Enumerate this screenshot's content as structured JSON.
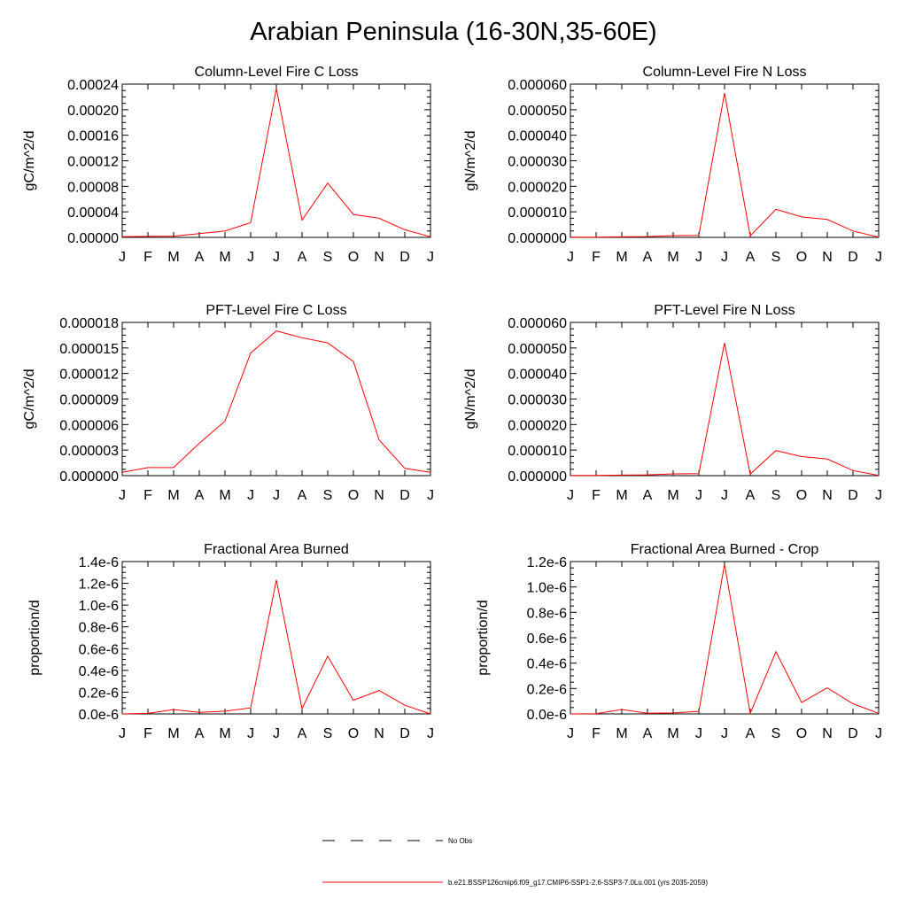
{
  "page": {
    "title": "Arabian Peninsula (16-30N,35-60E)"
  },
  "chart_data": [
    {
      "type": "line",
      "title": "Column-Level Fire C Loss",
      "ylabel": "gC/m^2/d",
      "xlabel": "",
      "categories": [
        "J",
        "F",
        "M",
        "A",
        "M",
        "J",
        "J",
        "A",
        "S",
        "O",
        "N",
        "D",
        "J"
      ],
      "ylim": [
        0,
        0.00024
      ],
      "yticks": [
        "0.00000",
        "0.00004",
        "0.00008",
        "0.00012",
        "0.00016",
        "0.00020",
        "0.00024"
      ],
      "series": [
        {
          "color": "#ff0000",
          "values": [
            1e-06,
            1.5e-06,
            2e-06,
            6e-06,
            1e-05,
            2.3e-05,
            0.000233,
            2.7e-05,
            8.5e-05,
            3.6e-05,
            3e-05,
            1.2e-05,
            1e-06
          ]
        }
      ]
    },
    {
      "type": "line",
      "title": "Column-Level Fire N Loss",
      "ylabel": "gN/m^2/d",
      "xlabel": "",
      "categories": [
        "J",
        "F",
        "M",
        "A",
        "M",
        "J",
        "J",
        "A",
        "S",
        "O",
        "N",
        "D",
        "J"
      ],
      "ylim": [
        0,
        6e-05
      ],
      "yticks": [
        "0.000000",
        "0.000010",
        "0.000020",
        "0.000030",
        "0.000040",
        "0.000050",
        "0.000060"
      ],
      "series": [
        {
          "color": "#ff0000",
          "values": [
            1e-07,
            1e-07,
            2e-07,
            3e-07,
            7e-07,
            8e-07,
            5.65e-05,
            6e-07,
            1.1e-05,
            8e-06,
            7e-06,
            2.5e-06,
            1e-07
          ]
        }
      ]
    },
    {
      "type": "line",
      "title": "PFT-Level Fire C Loss",
      "ylabel": "gC/m^2/d",
      "xlabel": "",
      "categories": [
        "J",
        "F",
        "M",
        "A",
        "M",
        "J",
        "J",
        "A",
        "S",
        "O",
        "N",
        "D",
        "J"
      ],
      "ylim": [
        0,
        1.8e-05
      ],
      "yticks": [
        "0.000000",
        "0.000003",
        "0.000006",
        "0.000009",
        "0.000012",
        "0.000015",
        "0.000018"
      ],
      "series": [
        {
          "color": "#ff0000",
          "values": [
            4e-07,
            9.5e-07,
            9.5e-07,
            3.8e-06,
            6.4e-06,
            1.44e-05,
            1.7e-05,
            1.62e-05,
            1.56e-05,
            1.34e-05,
            4.2e-06,
            8.5e-07,
            4e-07
          ]
        }
      ]
    },
    {
      "type": "line",
      "title": "PFT-Level Fire N Loss",
      "ylabel": "gN/m^2/d",
      "xlabel": "",
      "categories": [
        "J",
        "F",
        "M",
        "A",
        "M",
        "J",
        "J",
        "A",
        "S",
        "O",
        "N",
        "D",
        "J"
      ],
      "ylim": [
        0,
        6e-05
      ],
      "yticks": [
        "0.000000",
        "0.000010",
        "0.000020",
        "0.000030",
        "0.000040",
        "0.000050",
        "0.000060"
      ],
      "series": [
        {
          "color": "#ff0000",
          "values": [
            1e-07,
            1e-07,
            2e-07,
            3e-07,
            7e-07,
            8e-07,
            5.2e-05,
            6e-07,
            9.8e-06,
            7.5e-06,
            6.5e-06,
            2e-06,
            1e-07
          ]
        }
      ]
    },
    {
      "type": "line",
      "title": "Fractional Area Burned",
      "ylabel": "proportion/d",
      "xlabel": "",
      "categories": [
        "J",
        "F",
        "M",
        "A",
        "M",
        "J",
        "J",
        "A",
        "S",
        "O",
        "N",
        "D",
        "J"
      ],
      "ylim": [
        0,
        1.4e-06
      ],
      "yticks": [
        "0.0e-6",
        "0.2e-6",
        "0.4e-6",
        "0.6e-6",
        "0.8e-6",
        "1.0e-6",
        "1.2e-6",
        "1.4e-6"
      ],
      "series": [
        {
          "color": "#ff0000",
          "values": [
            0.0,
            5e-09,
            4e-08,
            1.5e-08,
            2.5e-08,
            5.5e-08,
            1.23e-06,
            5e-08,
            5.3e-07,
            1.25e-07,
            2.15e-07,
            8e-08,
            0.0
          ]
        }
      ]
    },
    {
      "type": "line",
      "title": "Fractional Area Burned - Crop",
      "ylabel": "proportion/d",
      "xlabel": "",
      "categories": [
        "J",
        "F",
        "M",
        "A",
        "M",
        "J",
        "J",
        "A",
        "S",
        "O",
        "N",
        "D",
        "J"
      ],
      "ylim": [
        0,
        1.2e-06
      ],
      "yticks": [
        "0.0e-6",
        "0.2e-6",
        "0.4e-6",
        "0.6e-6",
        "0.8e-6",
        "1.0e-6",
        "1.2e-6"
      ],
      "series": [
        {
          "color": "#ff0000",
          "values": [
            0.0,
            2e-09,
            3.5e-08,
            5e-09,
            8e-09,
            2e-08,
            1.18e-06,
            5e-09,
            4.9e-07,
            9e-08,
            2.05e-07,
            8e-08,
            5e-09
          ]
        }
      ]
    }
  ],
  "legend": [
    {
      "label": "No Obs",
      "color": "#000000",
      "style": "dashed"
    },
    {
      "label": "b.e21.BSSP126cmip6.f09_g17.CMIP6-SSP1-2.6-SSP3-7.0Lu.001 (yrs 2035-2059)",
      "color": "#ff0000",
      "style": "solid"
    }
  ]
}
